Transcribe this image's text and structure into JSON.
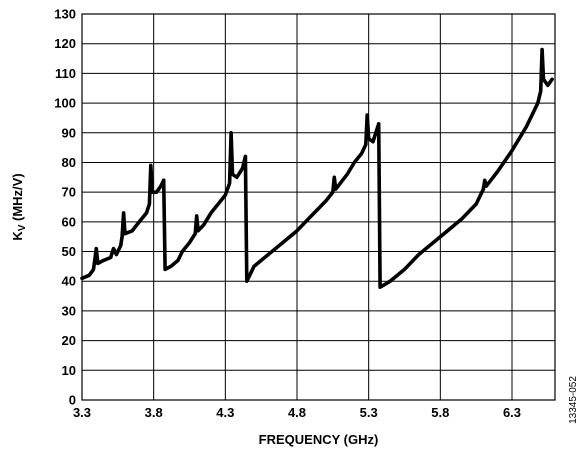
{
  "chart_data": {
    "type": "line",
    "xlabel": "FREQUENCY (GHz)",
    "ylabel_main": "K",
    "ylabel_sub": "V",
    "ylabel_unit": " (MHz/V)",
    "xlim": [
      3.3,
      6.6
    ],
    "ylim": [
      0,
      130
    ],
    "xticks": [
      "3.3",
      "3.8",
      "4.3",
      "4.8",
      "5.3",
      "5.8",
      "6.3"
    ],
    "yticks": [
      "0",
      "10",
      "20",
      "30",
      "40",
      "50",
      "60",
      "70",
      "80",
      "90",
      "100",
      "110",
      "120",
      "130"
    ],
    "grid": true,
    "figure_id": "13345-052",
    "series": [
      {
        "segments": [
          [
            [
              3.3,
              41
            ],
            [
              3.35,
              42
            ],
            [
              3.38,
              44
            ],
            [
              3.4,
              51
            ],
            [
              3.41,
              46
            ],
            [
              3.45,
              47
            ],
            [
              3.5,
              48
            ],
            [
              3.52,
              51
            ],
            [
              3.54,
              49
            ],
            [
              3.57,
              52
            ],
            [
              3.58,
              55
            ],
            [
              3.59,
              63
            ],
            [
              3.6,
              56
            ],
            [
              3.65,
              57
            ],
            [
              3.7,
              60
            ],
            [
              3.75,
              63
            ],
            [
              3.77,
              66
            ],
            [
              3.78,
              79
            ],
            [
              3.79,
              70
            ],
            [
              3.82,
              70
            ],
            [
              3.85,
              72
            ],
            [
              3.87,
              74
            ]
          ],
          [
            [
              3.87,
              74
            ],
            [
              3.88,
              44
            ],
            [
              3.92,
              45
            ],
            [
              3.97,
              47
            ],
            [
              4.0,
              50
            ],
            [
              4.05,
              53
            ],
            [
              4.09,
              56
            ],
            [
              4.1,
              62
            ],
            [
              4.11,
              57
            ],
            [
              4.15,
              59
            ],
            [
              4.2,
              63
            ],
            [
              4.25,
              66
            ],
            [
              4.3,
              69
            ],
            [
              4.33,
              73
            ],
            [
              4.34,
              90
            ],
            [
              4.35,
              76
            ],
            [
              4.38,
              75
            ],
            [
              4.42,
              78
            ],
            [
              4.44,
              82
            ]
          ],
          [
            [
              4.44,
              82
            ],
            [
              4.45,
              40
            ],
            [
              4.5,
              45
            ],
            [
              4.6,
              49
            ],
            [
              4.7,
              53
            ],
            [
              4.8,
              57
            ],
            [
              4.9,
              62
            ],
            [
              5.0,
              67
            ],
            [
              5.05,
              70
            ],
            [
              5.06,
              75
            ],
            [
              5.07,
              71
            ],
            [
              5.15,
              76
            ],
            [
              5.2,
              80
            ],
            [
              5.25,
              83
            ],
            [
              5.28,
              86
            ],
            [
              5.29,
              96
            ],
            [
              5.3,
              88
            ],
            [
              5.33,
              87
            ],
            [
              5.35,
              90
            ],
            [
              5.37,
              93
            ]
          ],
          [
            [
              5.37,
              93
            ],
            [
              5.38,
              38
            ],
            [
              5.45,
              40
            ],
            [
              5.55,
              44
            ],
            [
              5.65,
              49
            ],
            [
              5.75,
              53
            ],
            [
              5.85,
              57
            ],
            [
              5.95,
              61
            ],
            [
              6.05,
              66
            ],
            [
              6.1,
              71
            ],
            [
              6.11,
              74
            ],
            [
              6.12,
              72
            ],
            [
              6.2,
              77
            ],
            [
              6.3,
              84
            ],
            [
              6.4,
              92
            ],
            [
              6.48,
              100
            ],
            [
              6.5,
              104
            ],
            [
              6.51,
              118
            ],
            [
              6.52,
              108
            ],
            [
              6.55,
              106
            ],
            [
              6.58,
              108
            ]
          ]
        ]
      }
    ]
  }
}
